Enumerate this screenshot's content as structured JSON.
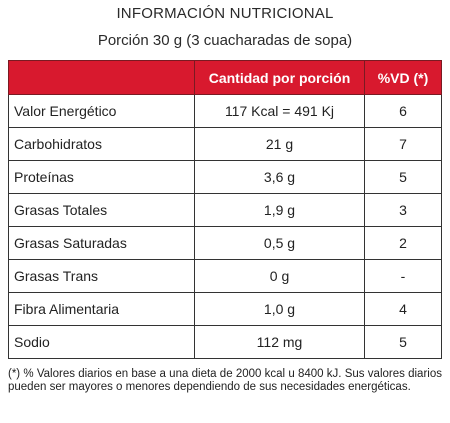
{
  "title": "INFORMACIÓN NUTRICIONAL",
  "subtitle": "Porción 30 g (3 cuacharadas de sopa)",
  "table": {
    "headers": [
      "",
      "Cantidad por porción",
      "%VD (*)"
    ],
    "rows": [
      {
        "name": "Valor Energético",
        "amount": "117 Kcal = 491 Kj",
        "vd": "6"
      },
      {
        "name": "Carbohidratos",
        "amount": "21 g",
        "vd": "7"
      },
      {
        "name": "Proteínas",
        "amount": "3,6 g",
        "vd": "5"
      },
      {
        "name": "Grasas Totales",
        "amount": "1,9 g",
        "vd": "3"
      },
      {
        "name": "Grasas Saturadas",
        "amount": "0,5 g",
        "vd": "2"
      },
      {
        "name": "Grasas Trans",
        "amount": "0 g",
        "vd": "-"
      },
      {
        "name": "Fibra Alimentaria",
        "amount": "1,0 g",
        "vd": "4"
      },
      {
        "name": "Sodio",
        "amount": "112 mg",
        "vd": "5"
      }
    ]
  },
  "footnote": "(*) % Valores diarios en base a una dieta de 2000 kcal u 8400 kJ. Sus valores diarios pueden ser mayores o menores dependiendo de sus necesidades energéticas.",
  "colors": {
    "header_bg": "#d8192e",
    "header_text": "#ffffff",
    "border": "#333333"
  }
}
